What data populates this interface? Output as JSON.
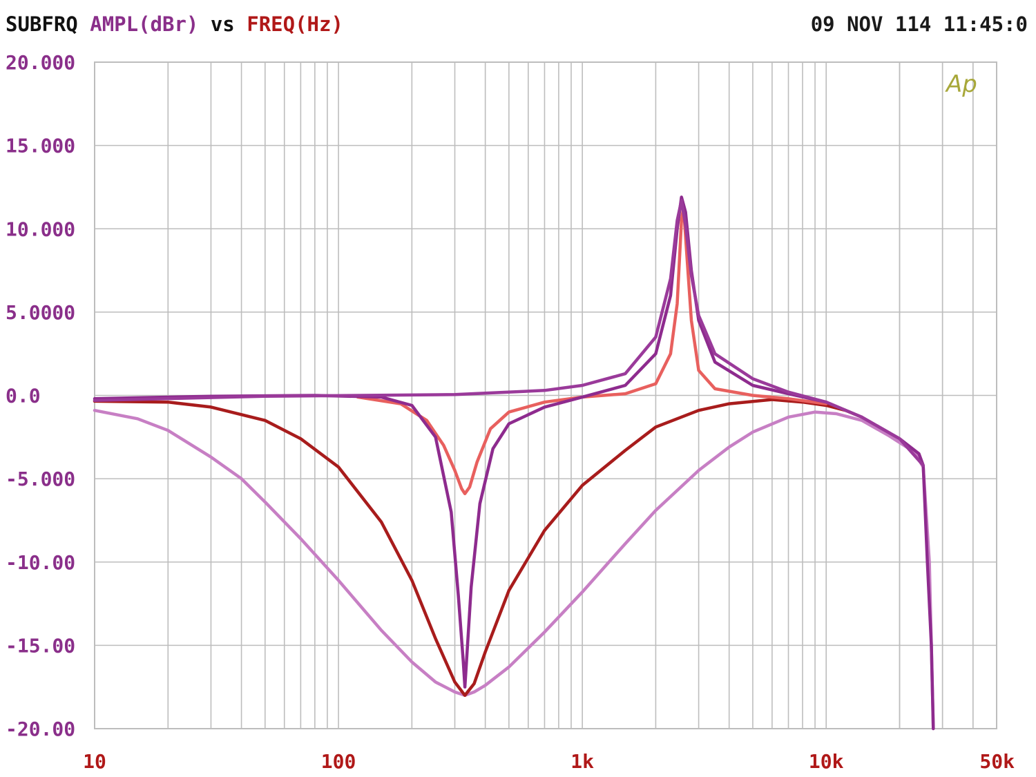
{
  "header": {
    "label_prefix": "SUBFRQ",
    "y_quantity": "AMPL(dBr)",
    "vs": "vs",
    "x_quantity": "FREQ(Hz)",
    "datetime": "09 NOV 114 11:45:0"
  },
  "logo_text": "Ap",
  "colors": {
    "prefix": "#111111",
    "y_axis": "#8a2f8a",
    "x_axis": "#b01818",
    "grid": "#bdbdbd",
    "logo": "#a8a83a"
  },
  "chart_data": {
    "type": "line",
    "x_scale": "log",
    "xlim": [
      10,
      50000
    ],
    "ylim": [
      -20,
      20
    ],
    "grid": true,
    "x_tick_labels": [
      {
        "value": 10,
        "label": "10"
      },
      {
        "value": 100,
        "label": "100"
      },
      {
        "value": 1000,
        "label": "1k"
      },
      {
        "value": 10000,
        "label": "10k"
      },
      {
        "value": 50000,
        "label": "50k"
      }
    ],
    "y_tick_labels": [
      {
        "value": 20,
        "label": "20.000"
      },
      {
        "value": 15,
        "label": "15.000"
      },
      {
        "value": 10,
        "label": "10.000"
      },
      {
        "value": 5,
        "label": "5.0000"
      },
      {
        "value": 0,
        "label": "0.0"
      },
      {
        "value": -5,
        "label": "-5.000"
      },
      {
        "value": -10,
        "label": "-10.00"
      },
      {
        "value": -15,
        "label": "-15.00"
      },
      {
        "value": -20,
        "label": "-20.00"
      }
    ],
    "series": [
      {
        "color": "#c77fc4",
        "points": [
          [
            10,
            -0.9
          ],
          [
            15,
            -1.4
          ],
          [
            20,
            -2.1
          ],
          [
            30,
            -3.7
          ],
          [
            40,
            -5.0
          ],
          [
            50,
            -6.4
          ],
          [
            70,
            -8.6
          ],
          [
            100,
            -11.1
          ],
          [
            150,
            -14.1
          ],
          [
            200,
            -16.0
          ],
          [
            250,
            -17.2
          ],
          [
            300,
            -17.8
          ],
          [
            330,
            -18.0
          ],
          [
            360,
            -17.8
          ],
          [
            400,
            -17.4
          ],
          [
            500,
            -16.3
          ],
          [
            700,
            -14.2
          ],
          [
            1000,
            -11.8
          ],
          [
            1500,
            -8.9
          ],
          [
            2000,
            -6.9
          ],
          [
            3000,
            -4.5
          ],
          [
            4000,
            -3.1
          ],
          [
            5000,
            -2.2
          ],
          [
            7000,
            -1.3
          ],
          [
            9000,
            -1.0
          ],
          [
            11000,
            -1.1
          ],
          [
            14000,
            -1.5
          ],
          [
            18000,
            -2.4
          ],
          [
            23000,
            -3.4
          ],
          [
            25000,
            -4.3
          ],
          [
            26500,
            -10.0
          ],
          [
            27000,
            -15.0
          ],
          [
            27500,
            -20.0
          ]
        ]
      },
      {
        "color": "#a81c1c",
        "points": [
          [
            10,
            -0.35
          ],
          [
            20,
            -0.4
          ],
          [
            30,
            -0.7
          ],
          [
            50,
            -1.5
          ],
          [
            70,
            -2.6
          ],
          [
            100,
            -4.3
          ],
          [
            150,
            -7.6
          ],
          [
            200,
            -11.1
          ],
          [
            250,
            -14.6
          ],
          [
            300,
            -17.2
          ],
          [
            330,
            -18.0
          ],
          [
            360,
            -17.3
          ],
          [
            400,
            -15.4
          ],
          [
            500,
            -11.7
          ],
          [
            700,
            -8.1
          ],
          [
            1000,
            -5.4
          ],
          [
            1500,
            -3.3
          ],
          [
            2000,
            -1.9
          ],
          [
            3000,
            -0.9
          ],
          [
            4000,
            -0.5
          ],
          [
            6000,
            -0.25
          ],
          [
            8000,
            -0.4
          ],
          [
            10000,
            -0.6
          ],
          [
            12000,
            -0.9
          ],
          [
            14000,
            -1.3
          ]
        ]
      },
      {
        "color": "#e8605e",
        "points": [
          [
            120,
            -0.1
          ],
          [
            180,
            -0.5
          ],
          [
            230,
            -1.5
          ],
          [
            270,
            -3.0
          ],
          [
            300,
            -4.5
          ],
          [
            320,
            -5.6
          ],
          [
            330,
            -5.9
          ],
          [
            345,
            -5.5
          ],
          [
            370,
            -4.0
          ],
          [
            420,
            -2.0
          ],
          [
            500,
            -1.0
          ],
          [
            700,
            -0.4
          ],
          [
            1000,
            -0.1
          ],
          [
            1500,
            0.1
          ],
          [
            2000,
            0.7
          ],
          [
            2300,
            2.5
          ],
          [
            2450,
            5.5
          ],
          [
            2550,
            10.5
          ],
          [
            2600,
            11.3
          ],
          [
            2680,
            8.5
          ],
          [
            2800,
            4.5
          ],
          [
            3000,
            1.5
          ],
          [
            3500,
            0.4
          ],
          [
            5000,
            0.0
          ],
          [
            7000,
            -0.2
          ],
          [
            10000,
            -0.5
          ]
        ]
      },
      {
        "color": "#8e2b8e",
        "points": [
          [
            10,
            -0.2
          ],
          [
            30,
            -0.05
          ],
          [
            80,
            0.0
          ],
          [
            150,
            -0.1
          ],
          [
            200,
            -0.6
          ],
          [
            250,
            -2.5
          ],
          [
            290,
            -7.0
          ],
          [
            310,
            -12.0
          ],
          [
            325,
            -16.0
          ],
          [
            330,
            -17.5
          ],
          [
            335,
            -16.0
          ],
          [
            350,
            -11.5
          ],
          [
            380,
            -6.5
          ],
          [
            430,
            -3.2
          ],
          [
            500,
            -1.7
          ],
          [
            700,
            -0.7
          ],
          [
            1000,
            -0.1
          ],
          [
            1500,
            0.6
          ],
          [
            2000,
            2.5
          ],
          [
            2300,
            6.0
          ],
          [
            2450,
            10.0
          ],
          [
            2550,
            11.9
          ],
          [
            2650,
            11.0
          ],
          [
            2800,
            7.5
          ],
          [
            3000,
            4.5
          ],
          [
            3500,
            2.0
          ],
          [
            5000,
            0.6
          ],
          [
            7000,
            0.1
          ],
          [
            10000,
            -0.4
          ],
          [
            14000,
            -1.3
          ],
          [
            20000,
            -2.6
          ],
          [
            24000,
            -3.5
          ],
          [
            25000,
            -4.2
          ],
          [
            26000,
            -10.0
          ],
          [
            27000,
            -15.0
          ],
          [
            27500,
            -20.0
          ]
        ]
      },
      {
        "color": "#9a3a9a",
        "points": [
          [
            10,
            -0.3
          ],
          [
            50,
            -0.05
          ],
          [
            300,
            0.05
          ],
          [
            700,
            0.3
          ],
          [
            1000,
            0.6
          ],
          [
            1500,
            1.3
          ],
          [
            2000,
            3.5
          ],
          [
            2300,
            7.0
          ],
          [
            2450,
            10.5
          ],
          [
            2550,
            11.7
          ],
          [
            2650,
            10.2
          ],
          [
            2800,
            7.2
          ],
          [
            3000,
            4.8
          ],
          [
            3500,
            2.5
          ],
          [
            5000,
            1.0
          ],
          [
            7000,
            0.2
          ],
          [
            10000,
            -0.4
          ],
          [
            14000,
            -1.3
          ],
          [
            20000,
            -2.6
          ],
          [
            25000,
            -4.2
          ]
        ]
      }
    ]
  }
}
